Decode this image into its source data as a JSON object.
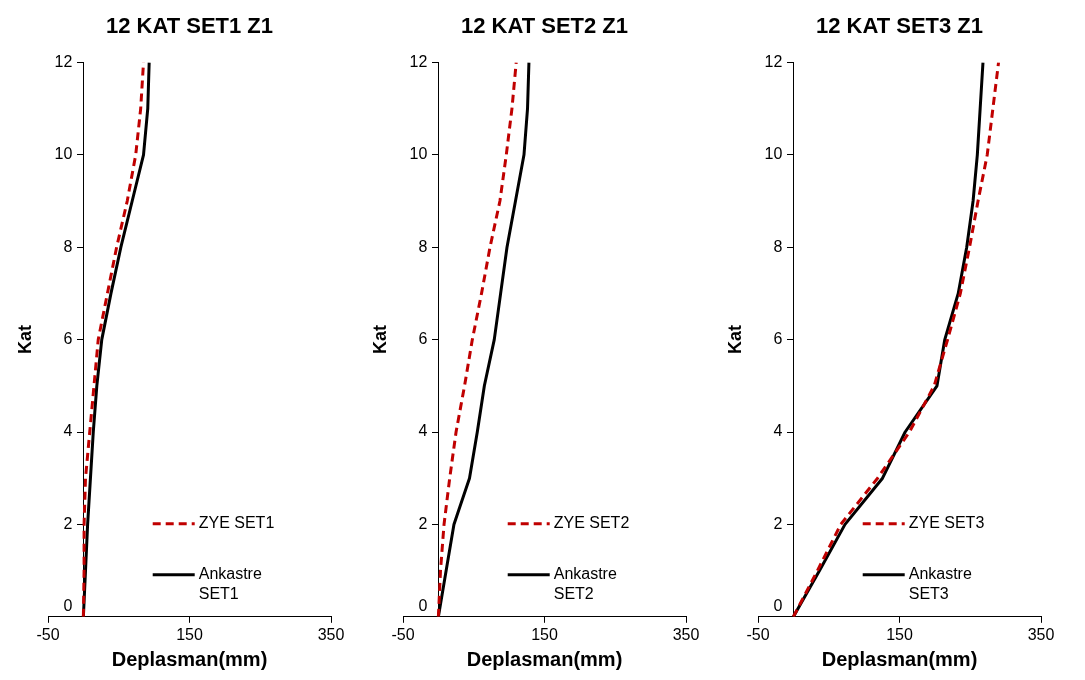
{
  "chart_data": [
    {
      "type": "line",
      "title": "12 KAT SET1 Z1",
      "xlabel": "Deplasman(mm)",
      "ylabel": "Kat",
      "xlim": [
        -50,
        350
      ],
      "xticks": [
        -50,
        150,
        350
      ],
      "ylim": [
        0,
        12
      ],
      "yticks": [
        0,
        2,
        4,
        6,
        8,
        10,
        12
      ],
      "grid": false,
      "legend": "bottom right",
      "marker": "none",
      "series": [
        {
          "name": "ZYE SET1",
          "color": "#c00000",
          "line_style": "dashed",
          "x": [
            0,
            1,
            1,
            3,
            9,
            15,
            21,
            34,
            47,
            62,
            74,
            81,
            85
          ],
          "values": [
            0,
            1,
            2,
            3,
            4,
            5,
            6,
            7,
            8,
            9,
            10,
            11,
            12
          ]
        },
        {
          "name": "Ankastre SET1",
          "color": "#000000",
          "line_style": "solid",
          "x": [
            0,
            3,
            6,
            10,
            14,
            19,
            26,
            39,
            53,
            69,
            85,
            91,
            93
          ],
          "values": [
            0,
            1,
            2,
            3,
            4,
            5,
            6,
            7,
            8,
            9,
            10,
            11,
            12
          ]
        }
      ]
    },
    {
      "type": "line",
      "title": "12 KAT SET2 Z1",
      "xlabel": "Deplasman(mm)",
      "ylabel": "Kat",
      "xlim": [
        -50,
        350
      ],
      "xticks": [
        -50,
        150,
        350
      ],
      "ylim": [
        0,
        12
      ],
      "yticks": [
        0,
        2,
        4,
        6,
        8,
        10,
        12
      ],
      "grid": false,
      "legend": "bottom right",
      "marker": "none",
      "series": [
        {
          "name": "ZYE SET2",
          "color": "#c00000",
          "line_style": "dashed",
          "x": [
            0,
            3,
            8,
            16,
            25,
            37,
            48,
            61,
            73,
            87,
            96,
            104,
            110
          ],
          "values": [
            0,
            1,
            2,
            3,
            4,
            5,
            6,
            7,
            8,
            9,
            10,
            11,
            12
          ]
        },
        {
          "name": "Ankastre SET2",
          "color": "#000000",
          "line_style": "solid",
          "x": [
            0,
            11,
            22,
            44,
            55,
            65,
            79,
            88,
            97,
            109,
            121,
            126,
            128
          ],
          "values": [
            0,
            1,
            2,
            3,
            4,
            5,
            6,
            7,
            8,
            9,
            10,
            11,
            12
          ]
        }
      ]
    },
    {
      "type": "line",
      "title": "12 KAT SET3 Z1",
      "xlabel": "Deplasman(mm)",
      "ylabel": "Kat",
      "xlim": [
        -50,
        350
      ],
      "xticks": [
        -50,
        150,
        350
      ],
      "ylim": [
        0,
        12
      ],
      "yticks": [
        0,
        2,
        4,
        6,
        8,
        10,
        12
      ],
      "grid": false,
      "legend": "bottom right",
      "marker": "none",
      "series": [
        {
          "name": "ZYE SET3",
          "color": "#c00000",
          "line_style": "dashed",
          "x": [
            0,
            34,
            67,
            119,
            164,
            199,
            218,
            236,
            249,
            261,
            274,
            282,
            290
          ],
          "values": [
            0,
            1,
            2,
            3,
            4,
            5,
            6,
            7,
            8,
            9,
            10,
            11,
            12
          ]
        },
        {
          "name": "Ankastre SET3",
          "color": "#000000",
          "line_style": "solid",
          "x": [
            0,
            37,
            73,
            126,
            158,
            203,
            214,
            233,
            245,
            254,
            260,
            264,
            268
          ],
          "values": [
            0,
            1,
            2,
            3,
            4,
            5,
            6,
            7,
            8,
            9,
            10,
            11,
            12
          ]
        }
      ]
    }
  ]
}
